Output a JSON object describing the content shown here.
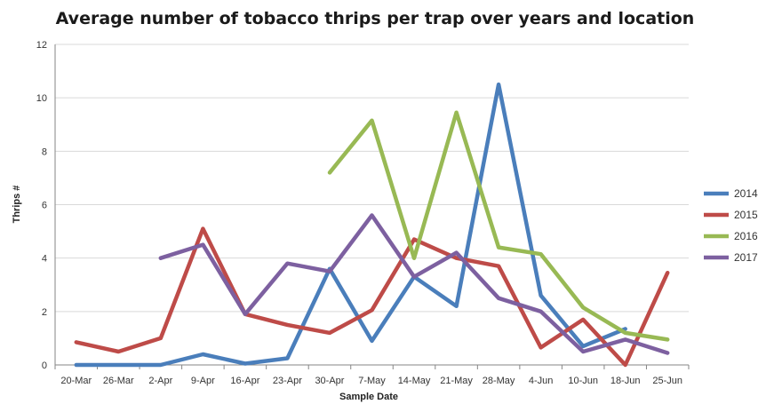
{
  "chart_data": {
    "type": "line",
    "title": "Average number of tobacco thrips per trap over years and location",
    "xlabel": "Sample Date",
    "ylabel": "Thrips #",
    "ylim": [
      0,
      12
    ],
    "yticks": [
      "0",
      "2",
      "4",
      "6",
      "8",
      "10",
      "12"
    ],
    "grid": true,
    "legend_position": "right",
    "categories": [
      "20-Mar",
      "26-Mar",
      "2-Apr",
      "9-Apr",
      "16-Apr",
      "23-Apr",
      "30-Apr",
      "7-May",
      "14-May",
      "21-May",
      "28-May",
      "4-Jun",
      "10-Jun",
      "18-Jun",
      "25-Jun"
    ],
    "series": [
      {
        "name": "2014",
        "color": "#4a7ebb",
        "values": [
          0.0,
          0.0,
          0.0,
          0.4,
          0.05,
          0.25,
          3.6,
          0.9,
          3.3,
          2.2,
          10.5,
          2.6,
          0.7,
          1.35,
          null
        ]
      },
      {
        "name": "2015",
        "color": "#be4b48",
        "values": [
          0.85,
          0.5,
          1.0,
          5.1,
          1.9,
          1.5,
          1.2,
          2.05,
          4.7,
          4.0,
          3.7,
          0.65,
          1.7,
          0.0,
          3.45
        ]
      },
      {
        "name": "2016",
        "color": "#98b954",
        "values": [
          null,
          null,
          null,
          null,
          null,
          null,
          7.2,
          9.15,
          4.0,
          9.45,
          4.4,
          4.15,
          2.15,
          1.2,
          0.95
        ]
      },
      {
        "name": "2017",
        "color": "#7d60a0",
        "values": [
          null,
          null,
          4.0,
          4.5,
          1.9,
          3.8,
          3.5,
          5.6,
          3.3,
          4.2,
          2.5,
          2.0,
          0.5,
          0.95,
          0.45
        ]
      }
    ]
  }
}
